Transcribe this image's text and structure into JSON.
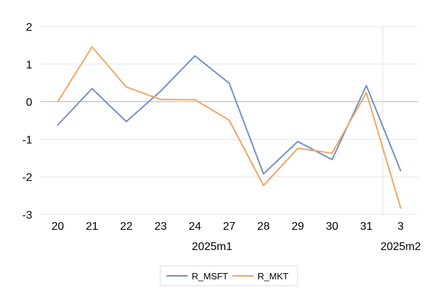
{
  "chart_data": {
    "type": "line",
    "categories": [
      "20",
      "21",
      "22",
      "23",
      "24",
      "27",
      "28",
      "29",
      "30",
      "31",
      "3"
    ],
    "groups": [
      {
        "label": "2025m1",
        "start": 0,
        "end": 9
      },
      {
        "label": "2025m2",
        "start": 10,
        "end": 10
      }
    ],
    "series": [
      {
        "name": "R_MSFT",
        "color": "#6f8fc4",
        "values": [
          -0.62,
          0.35,
          -0.53,
          0.28,
          1.22,
          0.49,
          -1.92,
          -1.06,
          -1.54,
          0.43,
          -1.84
        ]
      },
      {
        "name": "R_MKT",
        "color": "#f2a462",
        "values": [
          0.0,
          1.46,
          0.39,
          0.06,
          0.05,
          -0.49,
          -2.23,
          -1.24,
          -1.37,
          0.24,
          -2.83
        ]
      }
    ],
    "yticks": [
      2,
      1,
      0,
      -1,
      -2,
      -3
    ],
    "ytick_labels": [
      "2",
      "1",
      "0",
      "-1",
      "-2",
      "-3"
    ],
    "ylim": [
      -3,
      2
    ],
    "grid": true,
    "legend": "bottom"
  }
}
